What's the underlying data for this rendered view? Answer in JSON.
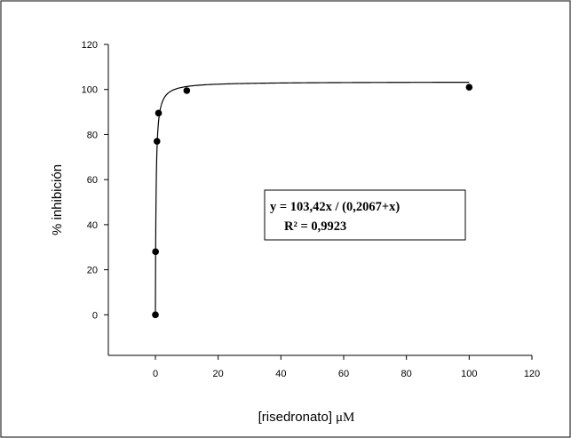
{
  "chart_data": {
    "type": "scatter",
    "xlabel": "[risedronato]",
    "xlabel_unit": "μM",
    "ylabel": "% inhibición",
    "xlim": [
      -15,
      120
    ],
    "ylim": [
      -18,
      120
    ],
    "x_ticks": [
      0,
      20,
      40,
      60,
      80,
      100,
      120
    ],
    "y_ticks": [
      0,
      20,
      40,
      60,
      80,
      100,
      120
    ],
    "grid": false,
    "legend": "none",
    "points": [
      {
        "x": 0,
        "y": 0
      },
      {
        "x": 0.05,
        "y": 28
      },
      {
        "x": 0.5,
        "y": 77
      },
      {
        "x": 1,
        "y": 89.5
      },
      {
        "x": 10,
        "y": 99.5
      },
      {
        "x": 100,
        "y": 101
      }
    ],
    "fit": {
      "model": "hyperbolic",
      "vmax": 103.42,
      "k": 0.2067
    },
    "annotation": {
      "line1": "y = 103,42x / (0,2067+x)",
      "line2": "R² = 0,9923"
    }
  }
}
